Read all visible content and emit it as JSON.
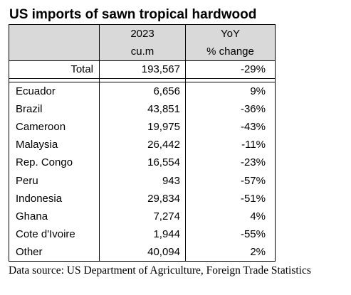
{
  "title": "US imports of sawn tropical hardwood",
  "table": {
    "header": {
      "col2_line1": "2023",
      "col2_line2": "cu.m",
      "col3_line1": "YoY",
      "col3_line2": "% change"
    },
    "total": {
      "label": "Total",
      "value": "193,567",
      "change": "-29%"
    },
    "rows": [
      {
        "country": "Ecuador",
        "value": "6,656",
        "change": "9%"
      },
      {
        "country": "Brazil",
        "value": "43,851",
        "change": "-36%"
      },
      {
        "country": "Cameroon",
        "value": "19,975",
        "change": "-43%"
      },
      {
        "country": "Malaysia",
        "value": "26,442",
        "change": "-11%"
      },
      {
        "country": "Rep. Congo",
        "value": "16,554",
        "change": "-23%"
      },
      {
        "country": "Peru",
        "value": "943",
        "change": "-57%"
      },
      {
        "country": "Indonesia",
        "value": "29,834",
        "change": "-51%"
      },
      {
        "country": "Ghana",
        "value": "7,274",
        "change": "4%"
      },
      {
        "country": "Cote d'Ivoire",
        "value": "1,944",
        "change": "-55%"
      },
      {
        "country": "Other",
        "value": "40,094",
        "change": "2%"
      }
    ]
  },
  "source": "Data source: US Department of Agriculture, Foreign Trade Statistics",
  "colors": {
    "header_bg": "#d9d9d9",
    "border": "#000000",
    "text": "#000000"
  }
}
